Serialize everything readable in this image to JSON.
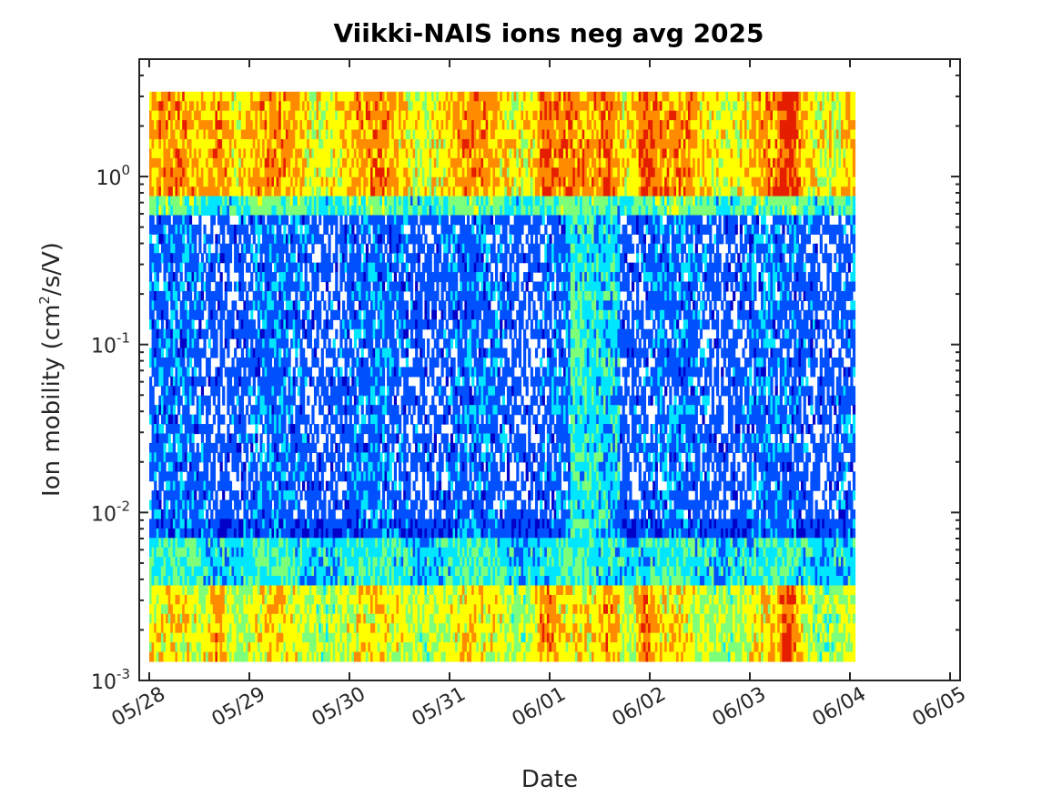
{
  "chart_data": {
    "type": "heatmap",
    "title": "Viikki-NAIS ions neg avg 2025",
    "xlabel": "Date",
    "ylabel_prefix": "Ion mobility (cm",
    "ylabel_sup": "2",
    "ylabel_suffix": "/s/V)",
    "x_ticks": [
      "05/28",
      "05/29",
      "05/30",
      "05/31",
      "06/01",
      "06/02",
      "06/03",
      "06/04",
      "06/05"
    ],
    "x_range_days": [
      -0.1,
      8.1
    ],
    "data_range_days": [
      0.0,
      7.05
    ],
    "y_scale": "log",
    "y_ticks": [
      {
        "base": "10",
        "exp": "0",
        "value": 1
      },
      {
        "base": "10",
        "exp": "-1",
        "value": 0.1
      },
      {
        "base": "10",
        "exp": "-2",
        "value": 0.01
      },
      {
        "base": "10",
        "exp": "-3",
        "value": 0.001
      }
    ],
    "ylim": [
      0.001,
      5
    ],
    "data_ylim": [
      0.0013,
      3.2
    ],
    "colormap": "jet",
    "colors": {
      "dark_blue": "#0000c8",
      "blue": "#0050ff",
      "cyan": "#00e6ff",
      "green": "#7dff7a",
      "yellow": "#ffff00",
      "orange": "#ff8c00",
      "red": "#e61e00"
    },
    "grid": false,
    "legend": "none"
  }
}
